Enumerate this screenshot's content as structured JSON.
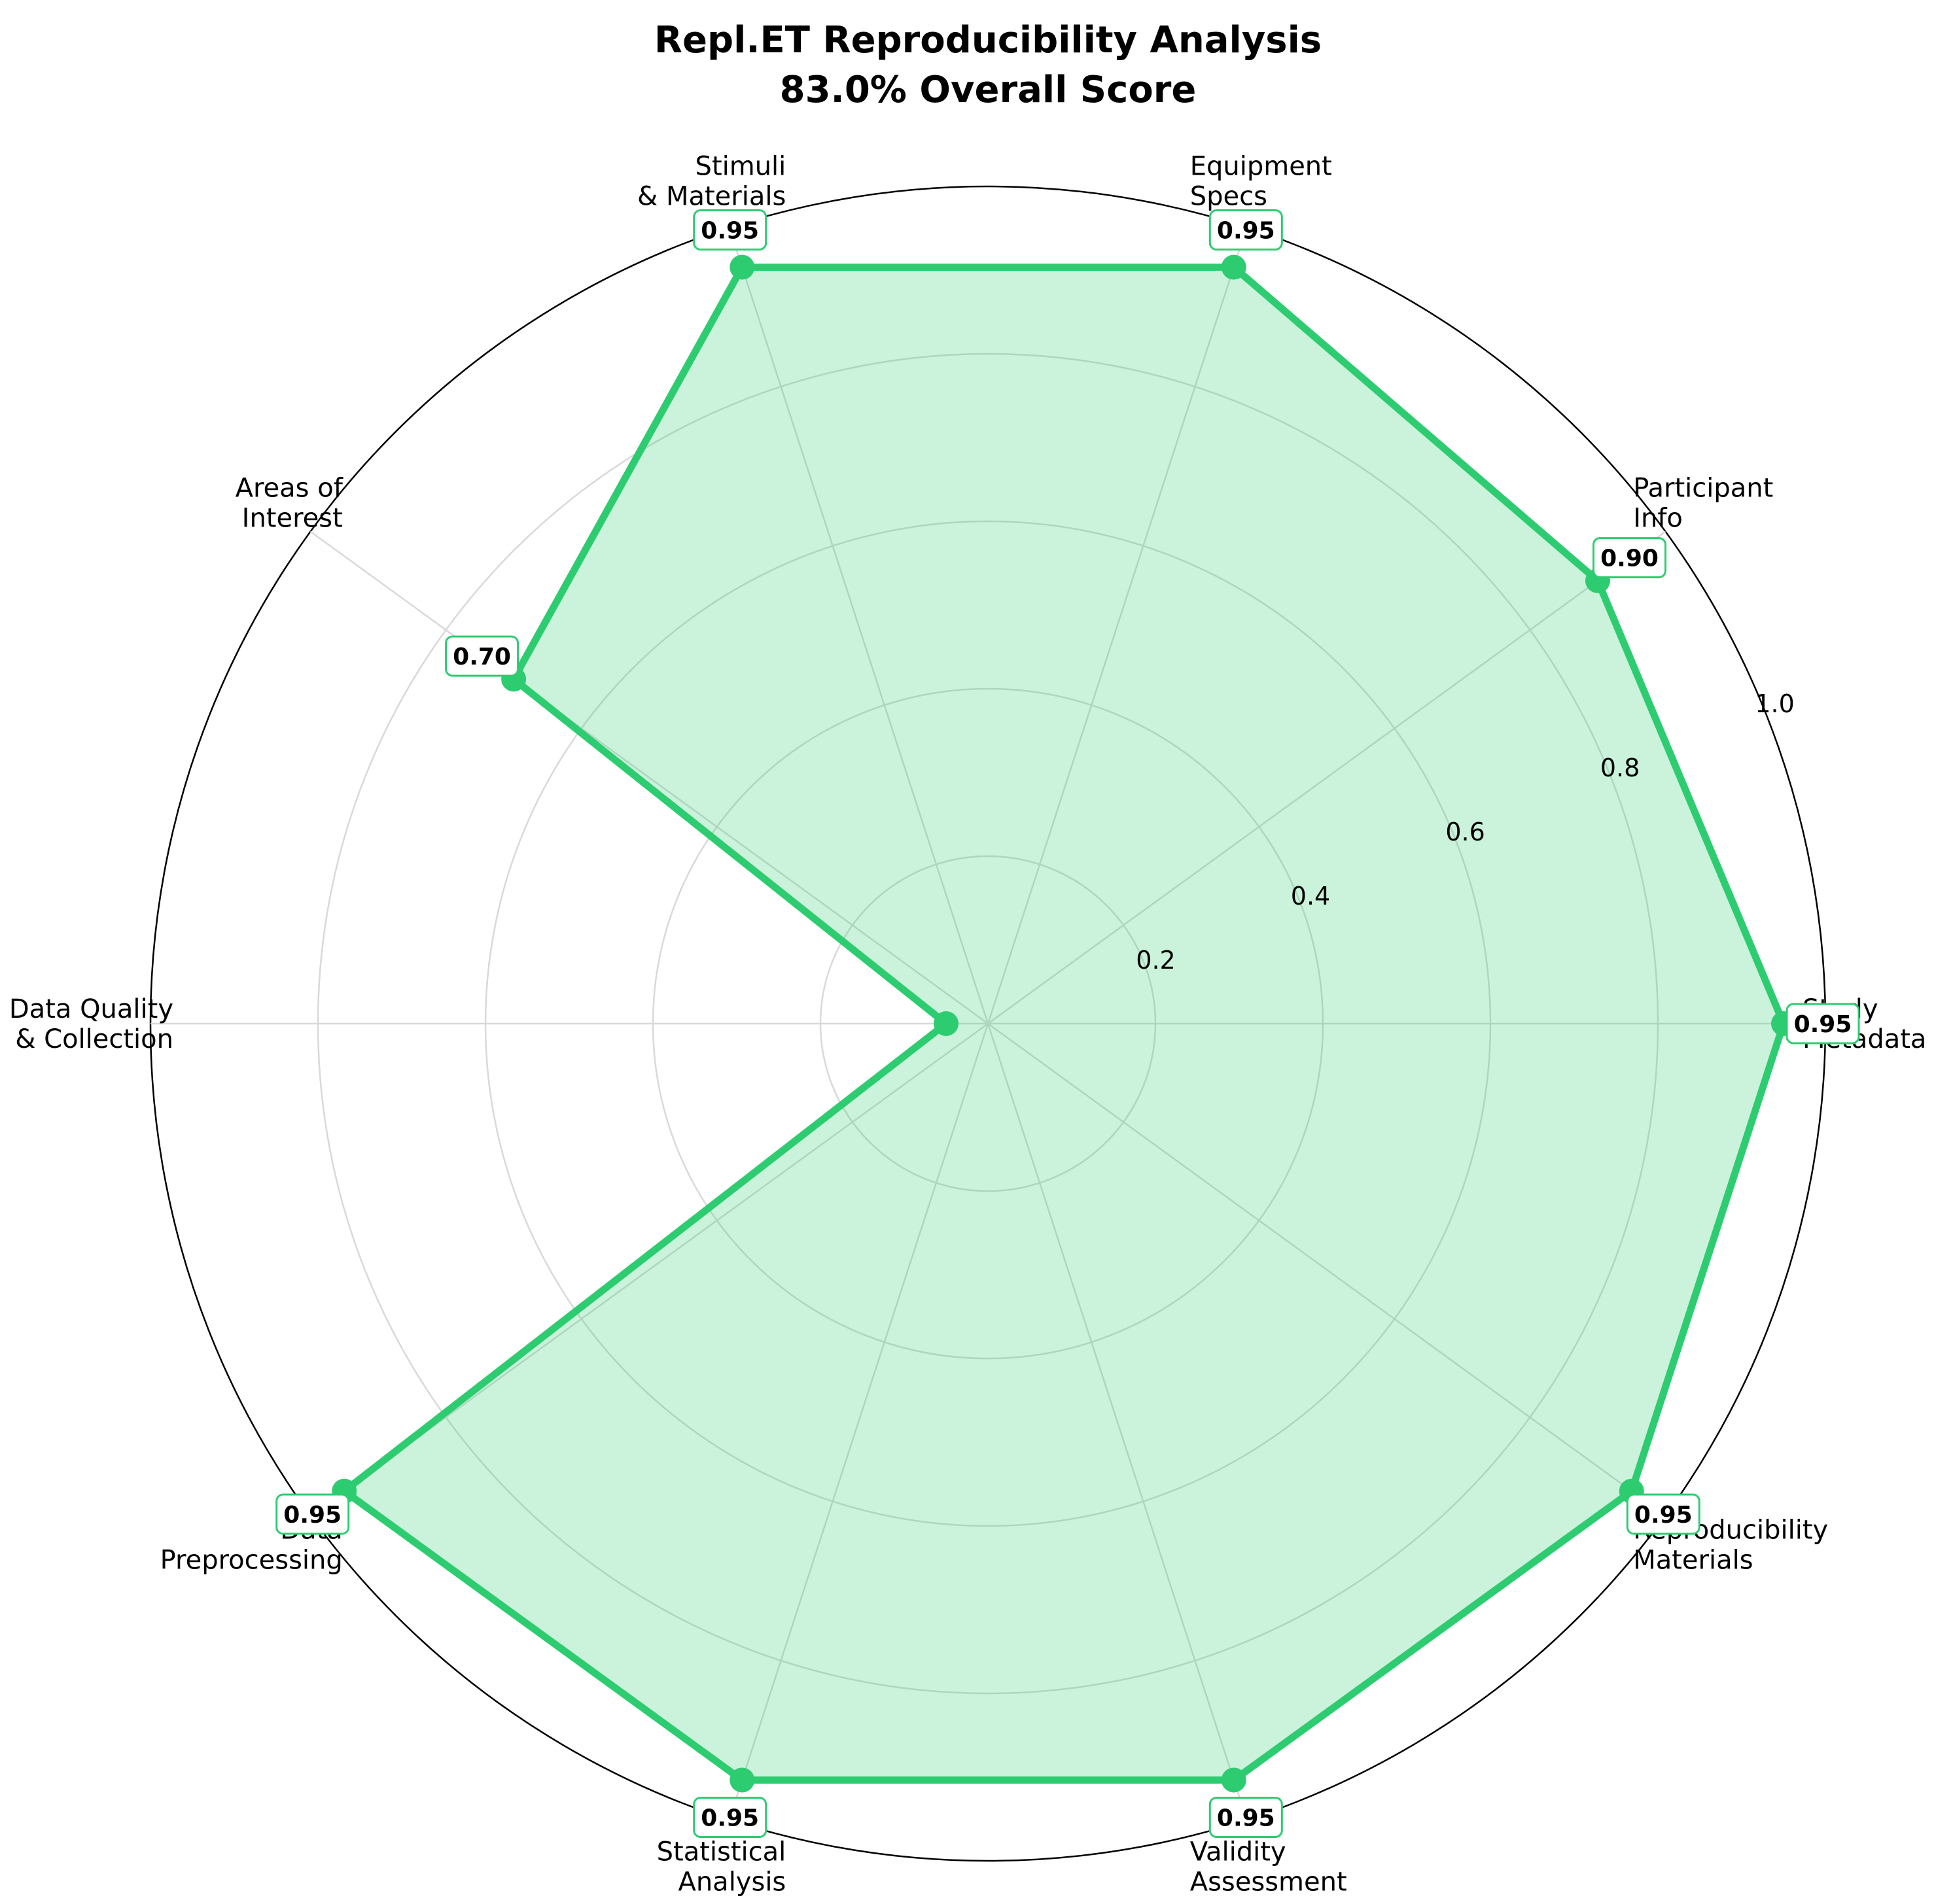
{
  "chart_data": {
    "type": "radar",
    "title": "Repl.ET Reproducibility Analysis",
    "subtitle": "83.0% Overall Score",
    "categories": [
      "Study\nMetadata",
      "Participant\nInfo",
      "Equipment\nSpecs",
      "Stimuli\n& Materials",
      "Areas of\nInterest",
      "Data Quality\n& Collection",
      "Data\nPreprocessing",
      "Statistical\nAnalysis",
      "Validity\nAssessment",
      "Reproducibility\nMaterials"
    ],
    "values": [
      0.95,
      0.9,
      0.95,
      0.95,
      0.7,
      0.05,
      0.95,
      0.95,
      0.95,
      0.95
    ],
    "value_labels": [
      "0.95",
      "0.90",
      "0.95",
      "0.95",
      "0.70",
      "",
      "0.95",
      "0.95",
      "0.95",
      "0.95"
    ],
    "rlim": [
      0,
      1.0
    ],
    "r_ticks": [
      0.2,
      0.4,
      0.6,
      0.8,
      1.0
    ],
    "r_tick_labels": [
      "0.2",
      "0.4",
      "0.6",
      "0.8",
      "1.0"
    ],
    "grid": true,
    "colors": {
      "line": "#2ecc71",
      "fill": "#2ecc71",
      "grid": "#d9d9d9",
      "outer": "#000000"
    }
  }
}
